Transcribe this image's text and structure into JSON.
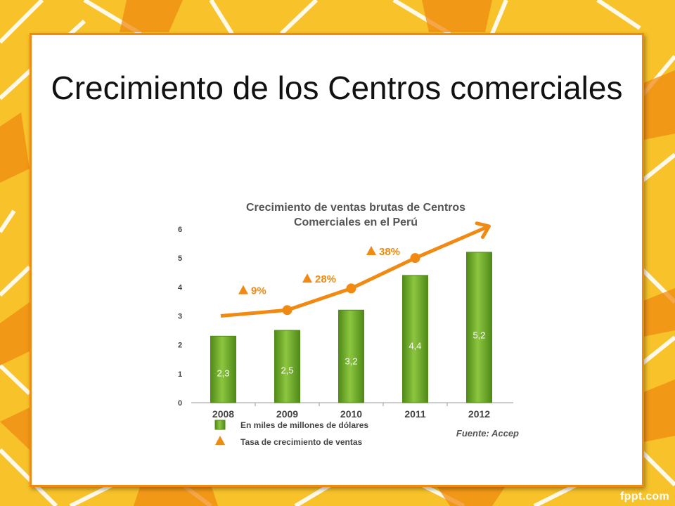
{
  "slide": {
    "title": "Crecimiento de los Centros comerciales"
  },
  "footer": {
    "brand": "fppt.com"
  },
  "chart_data": {
    "type": "bar",
    "title_line1": "Crecimiento de ventas brutas de Centros",
    "title_line2": "Comerciales en el Perú",
    "categories": [
      "2008",
      "2009",
      "2010",
      "2011",
      "2012"
    ],
    "series": [
      {
        "name": "En miles de millones de dólares",
        "values": [
          2.3,
          2.5,
          3.2,
          4.4,
          5.2
        ],
        "labels": [
          "2,3",
          "2,5",
          "3,2",
          "4,4",
          "5,2"
        ]
      }
    ],
    "growth_rates": [
      {
        "from": "2008",
        "to": "2009",
        "label": "9%"
      },
      {
        "from": "2009",
        "to": "2010",
        "label": "28%"
      },
      {
        "from": "2010",
        "to": "2011",
        "label": "38%"
      }
    ],
    "legend": [
      "En miles de millones de dólares",
      "Tasa de crecimiento de ventas"
    ],
    "ylim": [
      0,
      6
    ],
    "yticks": [
      "0",
      "1",
      "2",
      "3",
      "4",
      "5",
      "6"
    ],
    "source": "Fuente: Accep",
    "colors": {
      "bar": "#7cb832",
      "bar_dark": "#4f8a18",
      "trend": "#f08a12"
    }
  }
}
